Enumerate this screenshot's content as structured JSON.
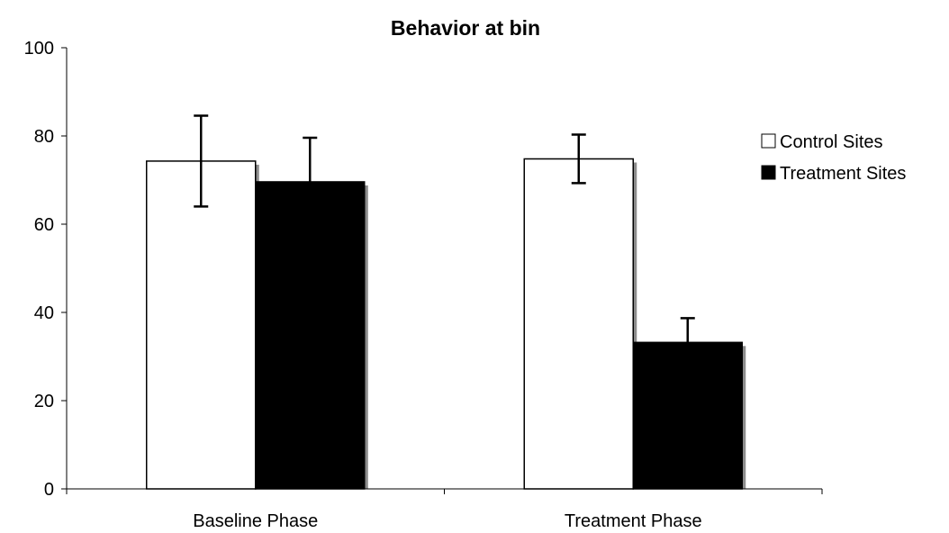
{
  "chart_data": {
    "type": "bar",
    "title": "Behavior at bin",
    "xlabel": "",
    "ylabel": "",
    "ylim": [
      0,
      100
    ],
    "y_ticks": [
      "0",
      "20",
      "40",
      "60",
      "80",
      "100"
    ],
    "categories": [
      "Baseline Phase",
      "Treatment Phase"
    ],
    "series": [
      {
        "name": "Control Sites",
        "values": [
          74.3,
          74.8
        ],
        "errors": [
          10.3,
          5.5
        ],
        "color": "#ffffff"
      },
      {
        "name": "Treatment Sites",
        "values": [
          69.6,
          33.2
        ],
        "errors": [
          10.0,
          5.5
        ],
        "color": "#000000"
      }
    ],
    "error_bars": true,
    "grid": false,
    "legend_position": "right"
  }
}
